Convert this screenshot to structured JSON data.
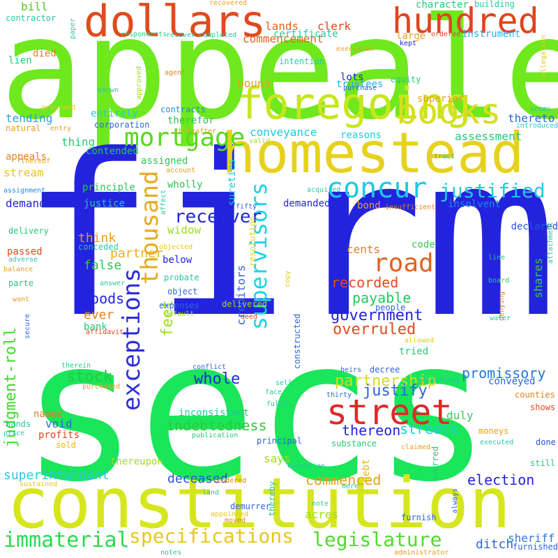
{
  "words": [
    {
      "text": "appealed",
      "color": "#6FE81E"
    },
    {
      "text": "firm",
      "color": "#2323DE"
    },
    {
      "text": "secs",
      "color": "#19E65A"
    },
    {
      "text": "homestead",
      "color": "#E6D21E"
    },
    {
      "text": "constitution",
      "color": "#D6E61E"
    },
    {
      "text": "dollars",
      "color": "#E04B1E"
    },
    {
      "text": "foregoing",
      "color": "#C8E61E"
    },
    {
      "text": "hundred",
      "color": "#E0451E"
    },
    {
      "text": "books",
      "color": "#D8DE1E"
    },
    {
      "text": "street",
      "color": "#E02828"
    },
    {
      "text": "supervisors",
      "color": "#1ED2E6"
    },
    {
      "text": "thousand",
      "color": "#E6AA1E"
    },
    {
      "text": "concur",
      "color": "#1EC8E6"
    },
    {
      "text": "mortgage",
      "color": "#5AD81E"
    },
    {
      "text": "exceptions",
      "color": "#2D2DDC"
    },
    {
      "text": "road",
      "color": "#E0641E"
    },
    {
      "text": "specifications",
      "color": "#E6C81E"
    },
    {
      "text": "immaterial",
      "color": "#28DC50"
    },
    {
      "text": "legislature",
      "color": "#50DC28"
    },
    {
      "text": "justified",
      "color": "#28C8DC"
    },
    {
      "text": "receiver",
      "color": "#2328D8"
    },
    {
      "text": "judgment-roll",
      "color": "#3CDC28"
    },
    {
      "text": "feet",
      "color": "#A0DC1E"
    },
    {
      "text": "government",
      "color": "#2323DE"
    },
    {
      "text": "overruled",
      "color": "#E04B1E"
    },
    {
      "text": "partnership",
      "color": "#D2DC1E"
    },
    {
      "text": "justify",
      "color": "#2D64DC"
    },
    {
      "text": "stock",
      "color": "#28C83C"
    },
    {
      "text": "whole",
      "color": "#2328D8"
    },
    {
      "text": "promissory",
      "color": "#1E78DC"
    },
    {
      "text": "indebtedness",
      "color": "#32C83C"
    },
    {
      "text": "streets",
      "color": "#1ECCDC"
    },
    {
      "text": "thereon",
      "color": "#2323DE"
    },
    {
      "text": "recorded",
      "color": "#E04B1E"
    },
    {
      "text": "payable",
      "color": "#28C85A"
    },
    {
      "text": "goods",
      "color": "#2323DE"
    },
    {
      "text": "partner",
      "color": "#E6B41E"
    },
    {
      "text": "false",
      "color": "#28C850"
    },
    {
      "text": "think",
      "color": "#E6A01E"
    },
    {
      "text": "widow",
      "color": "#A0DC1E"
    },
    {
      "text": "election",
      "color": "#2323DE"
    },
    {
      "text": "commenced",
      "color": "#E6A01E"
    },
    {
      "text": "superintendent",
      "color": "#28C8DC"
    },
    {
      "text": "deceased",
      "color": "#2D50DC"
    },
    {
      "text": "ditch",
      "color": "#2D64DC"
    },
    {
      "text": "sheriff",
      "color": "#2D78DC"
    },
    {
      "text": "says",
      "color": "#A0DC1E"
    },
    {
      "text": "acres",
      "color": "#A0DC1E"
    },
    {
      "text": "ever",
      "color": "#E0821E"
    },
    {
      "text": "cents",
      "color": "#E0821E"
    },
    {
      "text": "shares",
      "color": "#3CC850"
    },
    {
      "text": "creditors",
      "color": "#2D64DC"
    },
    {
      "text": "conveyance",
      "color": "#1ECCDC"
    },
    {
      "text": "assessment",
      "color": "#28C878"
    },
    {
      "text": "reasons",
      "color": "#1ECCDC"
    },
    {
      "text": "thereto",
      "color": "#2D64DC"
    },
    {
      "text": "character",
      "color": "#28C878"
    },
    {
      "text": "commencement",
      "color": "#E0641E"
    },
    {
      "text": "lands",
      "color": "#E0641E"
    },
    {
      "text": "clerk",
      "color": "#E0461E"
    },
    {
      "text": "certificate",
      "color": "#28C8A0"
    },
    {
      "text": "large",
      "color": "#E6A01E"
    },
    {
      "text": "instrument",
      "color": "#1EB4DC"
    },
    {
      "text": "trustees",
      "color": "#1EB4DC"
    },
    {
      "text": "superior",
      "color": "#E6A01E"
    },
    {
      "text": "lots",
      "color": "#2323DE"
    },
    {
      "text": "bound",
      "color": "#E6A01E"
    },
    {
      "text": "sureties",
      "color": "#1EC8DC"
    },
    {
      "text": "therefor",
      "color": "#28C850"
    },
    {
      "text": "entirely",
      "color": "#1ECCDC"
    },
    {
      "text": "tending",
      "color": "#2DA0DC"
    },
    {
      "text": "thing",
      "color": "#28C878"
    },
    {
      "text": "assigned",
      "color": "#28C850"
    },
    {
      "text": "stream",
      "color": "#E6C81E"
    },
    {
      "text": "appeals",
      "color": "#E0821E"
    },
    {
      "text": "demand",
      "color": "#2323DE"
    },
    {
      "text": "justice",
      "color": "#28C8A0"
    },
    {
      "text": "principle",
      "color": "#28C850"
    },
    {
      "text": "contended",
      "color": "#28C850"
    },
    {
      "text": "wholly",
      "color": "#28C850"
    },
    {
      "text": "demanded",
      "color": "#2323DE"
    },
    {
      "text": "bond",
      "color": "#E6A01E"
    },
    {
      "text": "insolvent",
      "color": "#1E8CDC"
    },
    {
      "text": "declared",
      "color": "#2D50DC"
    },
    {
      "text": "code",
      "color": "#3CC850"
    },
    {
      "text": "bill",
      "color": "#50C828"
    },
    {
      "text": "died",
      "color": "#E0821E"
    },
    {
      "text": "lien",
      "color": "#28C878"
    },
    {
      "text": "void",
      "color": "#2D64DC"
    },
    {
      "text": "profits",
      "color": "#E0461E"
    },
    {
      "text": "duly",
      "color": "#3CC850"
    },
    {
      "text": "debt",
      "color": "#E6B41E"
    },
    {
      "text": "tried",
      "color": "#28C878"
    },
    {
      "text": "named",
      "color": "#E0821E"
    },
    {
      "text": "conveyed",
      "color": "#2D64DC"
    },
    {
      "text": "inconsistent",
      "color": "#28C8A0"
    },
    {
      "text": "thereupon",
      "color": "#A0DC1E"
    },
    {
      "text": "below",
      "color": "#2323DE"
    },
    {
      "text": "passed",
      "color": "#E0461E"
    },
    {
      "text": "delivered",
      "color": "#A0DC1E"
    },
    {
      "text": "conceded",
      "color": "#28C8A0"
    },
    {
      "text": "bank",
      "color": "#28C878"
    },
    {
      "text": "expenses",
      "color": "#2D64DC"
    },
    {
      "text": "object",
      "color": "#2D64DC"
    },
    {
      "text": "probate",
      "color": "#28C8A0"
    },
    {
      "text": "resolution",
      "color": "#E6D21E"
    },
    {
      "text": "constructed",
      "color": "#2D64DC"
    },
    {
      "text": "people",
      "color": "#2D64DC"
    },
    {
      "text": "counties",
      "color": "#E0821E"
    },
    {
      "text": "shows",
      "color": "#E0461E"
    },
    {
      "text": "moneys",
      "color": "#E6A01E"
    },
    {
      "text": "done",
      "color": "#2D50DC"
    },
    {
      "text": "still",
      "color": "#28C878"
    },
    {
      "text": "furnished",
      "color": "#2D64DC"
    },
    {
      "text": "furnish",
      "color": "#2D64DC"
    },
    {
      "text": "demurrer",
      "color": "#2D64DC"
    },
    {
      "text": "hands",
      "color": "#28C8A0"
    },
    {
      "text": "principal",
      "color": "#2D64DC"
    },
    {
      "text": "substance",
      "color": "#28C878"
    },
    {
      "text": "sold",
      "color": "#E6B41E"
    },
    {
      "text": "entry",
      "color": "#E6A01E"
    },
    {
      "text": "natural",
      "color": "#E6A01E"
    },
    {
      "text": "presumed",
      "color": "#E6C81E"
    },
    {
      "text": "corporation",
      "color": "#2D64DC"
    },
    {
      "text": "contracts",
      "color": "#1E8CDC"
    },
    {
      "text": "thereafter",
      "color": "#E6A01E"
    },
    {
      "text": "valid",
      "color": "#A0DC1E"
    },
    {
      "text": "tract",
      "color": "#28C8A0"
    },
    {
      "text": "introduced",
      "color": "#28C8DC"
    },
    {
      "text": "seems",
      "color": "#28C8A0"
    },
    {
      "text": "equity",
      "color": "#28C878"
    },
    {
      "text": "purchase",
      "color": "#2D64DC"
    },
    {
      "text": "execution",
      "color": "#E6A01E"
    },
    {
      "text": "kept",
      "color": "#2323DE"
    },
    {
      "text": "building",
      "color": "#28C8A0"
    },
    {
      "text": "ordered",
      "color": "#E0461E"
    },
    {
      "text": "allegation",
      "color": "#E6C81E"
    },
    {
      "text": "intention",
      "color": "#28C8A0"
    },
    {
      "text": "contractor",
      "color": "#28C8A0"
    },
    {
      "text": "recovered",
      "color": "#E6A01E"
    },
    {
      "text": "recover",
      "color": "#28C8A0"
    },
    {
      "text": "completed",
      "color": "#28C8A0"
    },
    {
      "text": "paper",
      "color": "#28C8A0"
    },
    {
      "text": "respondents",
      "color": "#28C878"
    },
    {
      "text": "shown",
      "color": "#28C8A0"
    },
    {
      "text": "approved",
      "color": "#A0DC1E"
    },
    {
      "text": "agent",
      "color": "#E0821E"
    },
    {
      "text": "thereof",
      "color": "#E6A01E"
    },
    {
      "text": "account",
      "color": "#E6A01E"
    },
    {
      "text": "affect",
      "color": "#28C8A0"
    },
    {
      "text": "assignment",
      "color": "#1E8CDC"
    },
    {
      "text": "fifty",
      "color": "#2D64DC"
    },
    {
      "text": "acquired",
      "color": "#28C8A0"
    },
    {
      "text": "insufficient",
      "color": "#E0821E"
    },
    {
      "text": "attachment",
      "color": "#28C8A0"
    },
    {
      "text": "delivery",
      "color": "#28C878"
    },
    {
      "text": "adverse",
      "color": "#28C8A0"
    },
    {
      "text": "balance",
      "color": "#E6A01E"
    },
    {
      "text": "want",
      "color": "#E6A01E"
    },
    {
      "text": "parte",
      "color": "#28C878"
    },
    {
      "text": "answer",
      "color": "#28C8A0"
    },
    {
      "text": "objected",
      "color": "#E6C81E"
    },
    {
      "text": "default",
      "color": "#A0DC1E"
    },
    {
      "text": "deed",
      "color": "#E0461E"
    },
    {
      "text": "affidavit",
      "color": "#E0461E"
    },
    {
      "text": "secure",
      "color": "#2D64DC"
    },
    {
      "text": "line",
      "color": "#28C878"
    },
    {
      "text": "board",
      "color": "#28C878"
    },
    {
      "text": "water",
      "color": "#28C8A0"
    },
    {
      "text": "denying",
      "color": "#E0821E"
    },
    {
      "text": "copy",
      "color": "#E6C81E"
    },
    {
      "text": "allowed",
      "color": "#E6C81E"
    },
    {
      "text": "according",
      "color": "#28C8A0"
    },
    {
      "text": "heirs",
      "color": "#2D64DC"
    },
    {
      "text": "decree",
      "color": "#2D64DC"
    },
    {
      "text": "thirty",
      "color": "#2D64DC"
    },
    {
      "text": "conflict",
      "color": "#2D64DC"
    },
    {
      "text": "therein",
      "color": "#28C878"
    },
    {
      "text": "purchased",
      "color": "#E6A01E"
    },
    {
      "text": "sell",
      "color": "#28C8A0"
    },
    {
      "text": "face",
      "color": "#28C8A0"
    },
    {
      "text": "fully",
      "color": "#28C8A0"
    },
    {
      "text": "claimed",
      "color": "#E6A01E"
    },
    {
      "text": "executed",
      "color": "#28C8A0"
    },
    {
      "text": "averred",
      "color": "#28C878"
    },
    {
      "text": "price",
      "color": "#28C8A0"
    },
    {
      "text": "publication",
      "color": "#28C878"
    },
    {
      "text": "objection",
      "color": "#28C8A0"
    },
    {
      "text": "sustained",
      "color": "#E6C81E"
    },
    {
      "text": "rendered",
      "color": "#E0821E"
    },
    {
      "text": "thereby",
      "color": "#28C8A0"
    },
    {
      "text": "mere",
      "color": "#28C8A0"
    },
    {
      "text": "note",
      "color": "#28C8A0"
    },
    {
      "text": "always",
      "color": "#2D64DC"
    },
    {
      "text": "land",
      "color": "#28C8A0"
    },
    {
      "text": "appointed",
      "color": "#E6C81E"
    },
    {
      "text": "moved",
      "color": "#E0821E"
    },
    {
      "text": "notes",
      "color": "#28C8A0"
    },
    {
      "text": "administrator",
      "color": "#E6A01E"
    }
  ]
}
